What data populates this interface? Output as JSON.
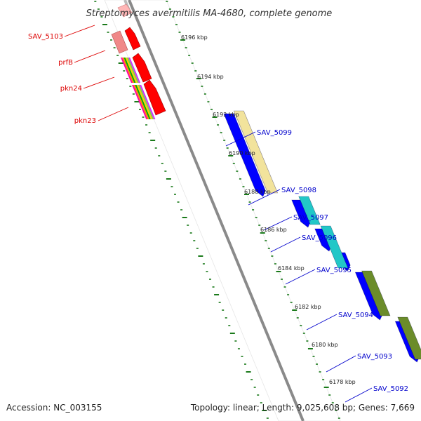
{
  "title": "Streptomyces avermitilis MA-4680, complete genome",
  "colors": {
    "forward_strand": "#0000ff",
    "reverse_strand": "#ff0000",
    "backbone": "#888888",
    "tick": "#1a7a1a",
    "label_red": "#dd0000",
    "label_blue": "#0000cc"
  },
  "kbp_labels": [
    "6196 kbp",
    "6194 kbp",
    "6192 kbp",
    "6190 kbp",
    "6188 kbp",
    "6186 kbp",
    "6184 kbp",
    "6182 kbp",
    "6180 kbp",
    "6178 kbp"
  ],
  "left_genes": [
    "SAV_5103",
    "prfB",
    "pkn24",
    "pkn23"
  ],
  "right_genes": [
    "SAV_5099",
    "SAV_5098",
    "SAV_5097",
    "SAV_5096",
    "SAV_5095",
    "SAV_5094",
    "SAV_5093",
    "SAV_5092"
  ],
  "footer": {
    "accession": "Accession: NC_003155",
    "stats": "Topology: linear; Length: 9,025,608 bp; Genes: 7,669"
  }
}
